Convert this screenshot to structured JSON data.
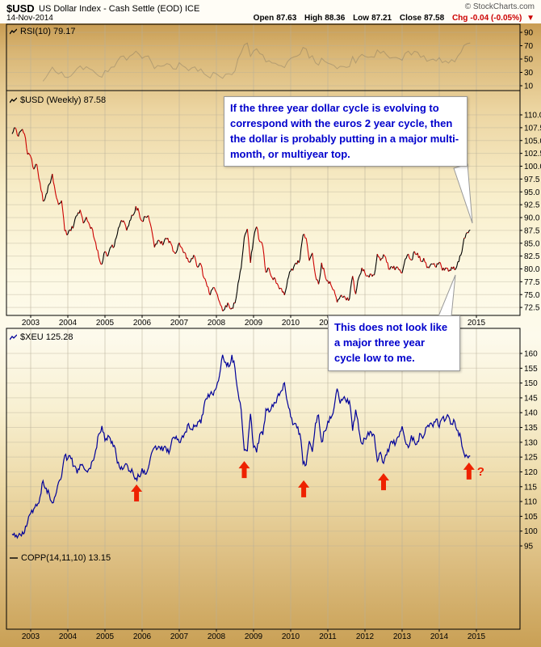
{
  "header": {
    "symbol": "$USD",
    "title": "US Dollar Index - Cash Settle (EOD) ICE",
    "date": "14-Nov-2014",
    "copyright": "© StockCharts.com",
    "quote": {
      "open_label": "Open",
      "open": "87.63",
      "high_label": "High",
      "high": "88.36",
      "low_label": "Low",
      "low": "87.21",
      "close_label": "Close",
      "close": "87.58",
      "chg_label": "Chg",
      "chg": "-0.04 (-0.05%)",
      "chg_arrow": "▼"
    }
  },
  "legends": {
    "rsi": "RSI(10) 79.17",
    "usd": "$USD (Weekly) 87.58",
    "xeu": "$XEU 125.28",
    "copp": "COPP(14,11,10) 13.15"
  },
  "annotations": {
    "top_note": "If the three year dollar cycle is evolving to correspond with the euros 2 year cycle, then the dollar is probably putting in a major multi-month, or multiyear top.",
    "bottom_note": "This does not look like a major three year cycle low to me.",
    "question_mark": "?"
  },
  "colors": {
    "usd_up": "#000000",
    "usd_down": "#cc0000",
    "xeu": "#000099",
    "arrow": "#ee2200",
    "note_text": "#0000cc",
    "grid": "#b8b09a"
  },
  "x_axis": {
    "years": [
      "2003",
      "2004",
      "2005",
      "2006",
      "2007",
      "2008",
      "2009",
      "2010",
      "2011",
      "2012",
      "2013",
      "2014",
      "2015"
    ]
  },
  "chart_data": [
    {
      "type": "line",
      "name": "$USD US Dollar Index (Weekly close)",
      "panel": "usd",
      "x_start_year": 2002.5,
      "x_step_years": 0.083333,
      "last_value": 87.58,
      "ylim": [
        72.5,
        110
      ],
      "yticks": [
        110,
        107.5,
        105,
        102.5,
        100,
        97.5,
        95,
        92.5,
        90,
        87.5,
        85,
        82.5,
        80,
        77.5,
        75,
        72.5
      ],
      "style": "two-color line: black rising, red falling",
      "values": [
        106.3,
        107.5,
        105.8,
        107.0,
        106.3,
        102.3,
        101.9,
        99.4,
        100.3,
        96.8,
        93.2,
        94.6,
        96.5,
        98.5,
        94.8,
        92.5,
        93.3,
        87.4,
        86.8,
        87.4,
        88.8,
        90.4,
        91.5,
        88.9,
        90.1,
        88.6,
        87.6,
        85.1,
        82.3,
        80.9,
        83.4,
        82.6,
        84.3,
        84.4,
        86.8,
        89.0,
        89.4,
        87.5,
        89.4,
        90.4,
        92.2,
        91.0,
        89.3,
        90.2,
        90.4,
        87.9,
        84.2,
        85.4,
        84.9,
        85.1,
        85.8,
        85.4,
        83.4,
        83.2,
        85.1,
        83.9,
        83.0,
        81.4,
        82.1,
        82.4,
        80.3,
        80.9,
        78.2,
        76.6,
        74.9,
        76.4,
        75.4,
        73.6,
        71.8,
        72.9,
        73.0,
        72.4,
        73.3,
        77.2,
        80.2,
        86.1,
        87.8,
        81.2,
        85.8,
        88.2,
        85.3,
        84.4,
        79.3,
        80.1,
        78.3,
        78.1,
        76.7,
        76.2,
        74.9,
        77.9,
        79.6,
        80.4,
        80.9,
        81.9,
        86.6,
        86.0,
        81.6,
        83.1,
        78.7,
        77.0,
        81.2,
        79.0,
        77.7,
        76.9,
        75.9,
        73.5,
        74.6,
        74.5,
        73.9,
        74.2,
        78.6,
        75.1,
        78.3,
        80.2,
        79.2,
        78.7,
        79.0,
        78.8,
        82.9,
        81.6,
        82.8,
        81.3,
        79.9,
        80.1,
        80.2,
        79.8,
        79.2,
        81.9,
        82.9,
        81.7,
        83.4,
        83.1,
        81.5,
        82.1,
        80.2,
        80.6,
        80.9,
        80.3,
        81.3,
        79.7,
        80.2,
        79.5,
        80.4,
        79.8,
        81.4,
        82.7,
        86.0,
        87.1,
        87.58
      ]
    },
    {
      "type": "line",
      "name": "$XEU Euro Index",
      "panel": "xeu",
      "x_start_year": 2002.5,
      "x_step_years": 0.083333,
      "last_value": 125.28,
      "ylim": [
        95,
        160
      ],
      "yticks": [
        160,
        155,
        150,
        145,
        140,
        135,
        130,
        125,
        120,
        115,
        110,
        105,
        100,
        95
      ],
      "values": [
        99.0,
        98.1,
        98.5,
        98.4,
        99.5,
        103.0,
        106.0,
        107.5,
        108.5,
        111.5,
        117.0,
        114.5,
        112.5,
        109.5,
        112.0,
        116.5,
        118.5,
        125.5,
        124.5,
        124.5,
        122.0,
        119.5,
        122.5,
        121.8,
        120.3,
        121.2,
        123.8,
        127.3,
        132.8,
        135.5,
        130.5,
        132.3,
        129.7,
        128.9,
        123.0,
        120.9,
        121.2,
        122.7,
        120.3,
        119.9,
        117.9,
        118.4,
        121.2,
        119.2,
        121.3,
        126.2,
        128.3,
        127.9,
        127.5,
        128.2,
        126.8,
        127.4,
        131.6,
        132.0,
        129.9,
        132.2,
        133.5,
        136.3,
        134.4,
        135.3,
        136.9,
        136.4,
        142.4,
        144.7,
        146.3,
        145.9,
        148.5,
        152.5,
        159.5,
        157.0,
        155.5,
        159.5,
        155.0,
        146.8,
        140.9,
        127.3,
        127.1,
        139.6,
        128.3,
        126.6,
        132.7,
        132.5,
        141.3,
        140.2,
        142.7,
        143.3,
        146.4,
        147.4,
        150.1,
        143.3,
        138.6,
        136.1,
        134.9,
        132.9,
        122.7,
        122.4,
        130.4,
        126.8,
        136.4,
        139.2,
        130.1,
        133.8,
        137.1,
        138.1,
        141.6,
        148.1,
        143.1,
        144.9,
        143.5,
        143.9,
        133.9,
        141.0,
        134.4,
        129.5,
        131.2,
        133.4,
        133.4,
        132.4,
        123.6,
        126.6,
        122.9,
        125.7,
        129.0,
        129.6,
        129.9,
        131.9,
        135.4,
        130.4,
        128.2,
        132.3,
        130.1,
        130.3,
        132.8,
        132.1,
        135.2,
        136.3,
        135.2,
        137.8,
        135.0,
        138.2,
        137.6,
        138.8,
        136.2,
        136.9,
        134.0,
        131.4,
        126.2,
        125.3,
        125.28
      ],
      "arrows": [
        {
          "x": 2005.85,
          "y": 116.3
        },
        {
          "x": 2008.75,
          "y": 124.2
        },
        {
          "x": 2010.35,
          "y": 117.7
        },
        {
          "x": 2012.5,
          "y": 120.1
        },
        {
          "x": 2014.8,
          "y": 123.7,
          "label": "?"
        }
      ]
    },
    {
      "type": "line",
      "name": "RSI(10)",
      "panel": "rsi",
      "last_value": 79.17,
      "ylim": [
        10,
        90
      ],
      "yticks": [
        90,
        70,
        50,
        30,
        10
      ]
    },
    {
      "type": "line",
      "name": "COPP(14,11,10)",
      "panel": "copp",
      "last_value": 13.15
    }
  ]
}
